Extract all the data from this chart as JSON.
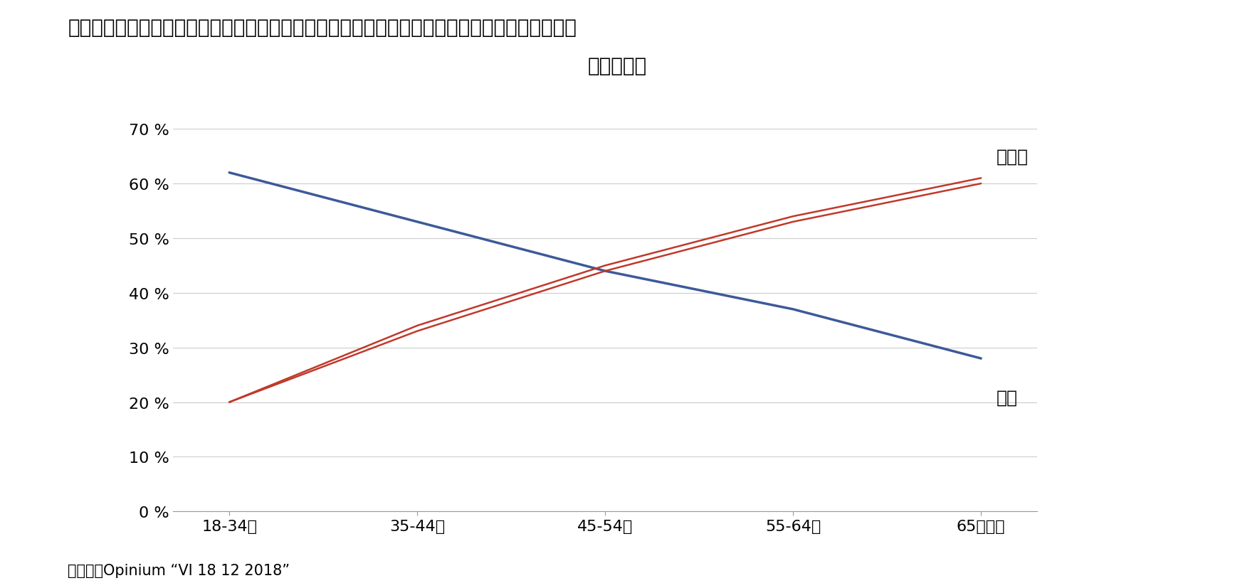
{
  "title_line1": "図表７　世論調査：議会が否決した場合、次にすることについて何らかの形で民意を問うべきか",
  "title_line2": "（年代別）",
  "categories": [
    "18-34歳",
    "35-44歳",
    "45-54歳",
    "55-64歳",
    "65歳以上"
  ],
  "hai_values": [
    62,
    53,
    44,
    37,
    28
  ],
  "iie_values": [
    20,
    33,
    44,
    53,
    60
  ],
  "iie_values2": [
    20,
    34,
    45,
    54,
    61
  ],
  "hai_color": "#3c5a9a",
  "iie_color": "#c0392b",
  "ylim": [
    0,
    70
  ],
  "yticks": [
    0,
    10,
    20,
    30,
    40,
    50,
    60,
    70
  ],
  "label_hai": "はい",
  "label_iie": "いいえ",
  "source": "（資料）Opinium “VI 18 12 2018”",
  "background_color": "#ffffff",
  "title_fontsize": 20,
  "label_fontsize": 18,
  "tick_fontsize": 16,
  "source_fontsize": 15
}
